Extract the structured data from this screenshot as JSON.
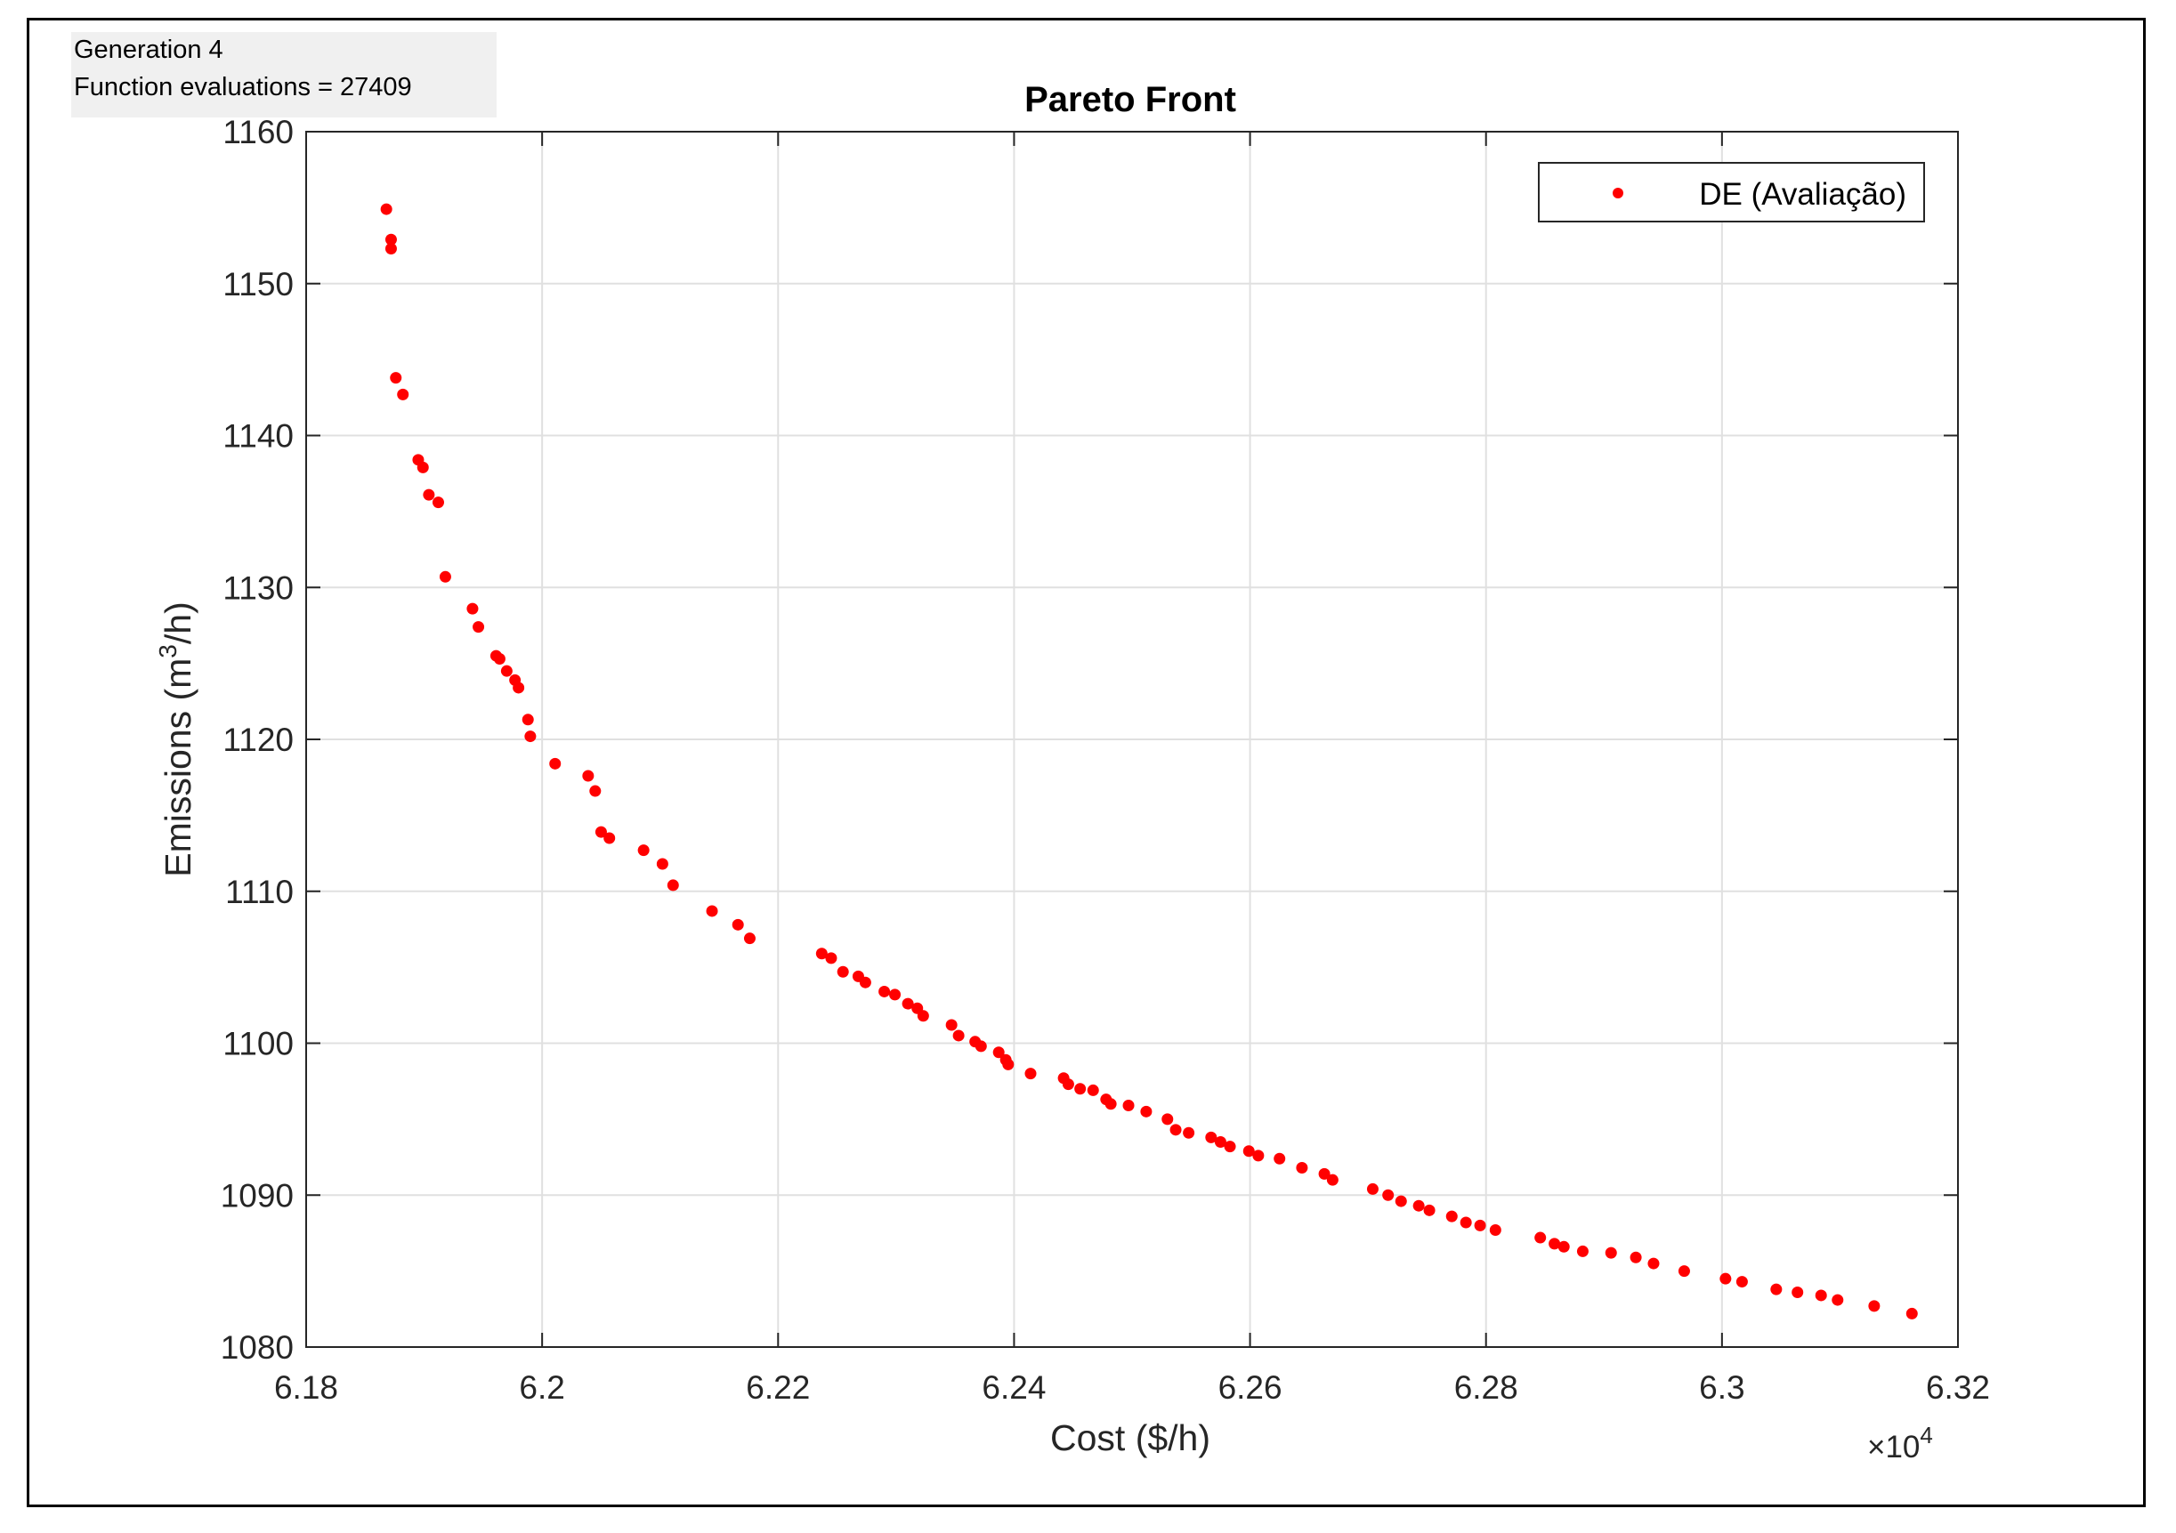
{
  "status": {
    "generation": "Generation 4",
    "function_evaluations": "Function evaluations = 27409"
  },
  "colors": {
    "marker": "#ff0000",
    "grid": "#e0e0e0",
    "axis": "#262626"
  },
  "chart_data": {
    "type": "scatter",
    "title": "Pareto Front",
    "xlabel": "Cost ($/h)",
    "ylabel_main": "Emissions (m",
    "ylabel_sup": "3",
    "ylabel_tail": "/h)",
    "x_multiplier_prefix": "×10",
    "x_multiplier_exp": "4",
    "xlim": [
      6.18,
      6.32
    ],
    "ylim": [
      1080,
      1160
    ],
    "xticks": [
      "6.18",
      "6.2",
      "6.22",
      "6.24",
      "6.26",
      "6.28",
      "6.3",
      "6.32"
    ],
    "yticks": [
      "1080",
      "1090",
      "1100",
      "1110",
      "1120",
      "1130",
      "1140",
      "1150",
      "1160"
    ],
    "grid": true,
    "legend_position": "top-right",
    "series": [
      {
        "name": "DE (Avaliação)",
        "color": "#ff0000",
        "points": [
          [
            6.1868,
            1154.9
          ],
          [
            6.1872,
            1152.9
          ],
          [
            6.1872,
            1152.3
          ],
          [
            6.1876,
            1143.8
          ],
          [
            6.1882,
            1142.7
          ],
          [
            6.1895,
            1138.4
          ],
          [
            6.1899,
            1137.9
          ],
          [
            6.1904,
            1136.1
          ],
          [
            6.1912,
            1135.6
          ],
          [
            6.1918,
            1130.7
          ],
          [
            6.1941,
            1128.6
          ],
          [
            6.1946,
            1127.4
          ],
          [
            6.1961,
            1125.5
          ],
          [
            6.1964,
            1125.3
          ],
          [
            6.197,
            1124.5
          ],
          [
            6.1977,
            1123.9
          ],
          [
            6.198,
            1123.4
          ],
          [
            6.1988,
            1121.3
          ],
          [
            6.199,
            1120.2
          ],
          [
            6.2011,
            1118.4
          ],
          [
            6.2039,
            1117.6
          ],
          [
            6.2045,
            1116.6
          ],
          [
            6.205,
            1113.9
          ],
          [
            6.2057,
            1113.5
          ],
          [
            6.2086,
            1112.7
          ],
          [
            6.2102,
            1111.8
          ],
          [
            6.2111,
            1110.4
          ],
          [
            6.2144,
            1108.7
          ],
          [
            6.2166,
            1107.8
          ],
          [
            6.2176,
            1106.9
          ],
          [
            6.2237,
            1105.9
          ],
          [
            6.2245,
            1105.6
          ],
          [
            6.2255,
            1104.7
          ],
          [
            6.2268,
            1104.4
          ],
          [
            6.2274,
            1104.0
          ],
          [
            6.229,
            1103.4
          ],
          [
            6.2299,
            1103.2
          ],
          [
            6.231,
            1102.6
          ],
          [
            6.2318,
            1102.3
          ],
          [
            6.2323,
            1101.8
          ],
          [
            6.2347,
            1101.2
          ],
          [
            6.2353,
            1100.5
          ],
          [
            6.2367,
            1100.1
          ],
          [
            6.2372,
            1099.8
          ],
          [
            6.2387,
            1099.4
          ],
          [
            6.2393,
            1098.9
          ],
          [
            6.2395,
            1098.6
          ],
          [
            6.2414,
            1098.0
          ],
          [
            6.2442,
            1097.7
          ],
          [
            6.2446,
            1097.3
          ],
          [
            6.2456,
            1097.0
          ],
          [
            6.2467,
            1096.9
          ],
          [
            6.2478,
            1096.3
          ],
          [
            6.2482,
            1096.0
          ],
          [
            6.2497,
            1095.9
          ],
          [
            6.2512,
            1095.5
          ],
          [
            6.253,
            1095.0
          ],
          [
            6.2537,
            1094.3
          ],
          [
            6.2548,
            1094.1
          ],
          [
            6.2567,
            1093.8
          ],
          [
            6.2575,
            1093.5
          ],
          [
            6.2583,
            1093.2
          ],
          [
            6.2599,
            1092.9
          ],
          [
            6.2607,
            1092.6
          ],
          [
            6.2625,
            1092.4
          ],
          [
            6.2644,
            1091.8
          ],
          [
            6.2663,
            1091.4
          ],
          [
            6.267,
            1091.0
          ],
          [
            6.2704,
            1090.4
          ],
          [
            6.2717,
            1090.0
          ],
          [
            6.2728,
            1089.6
          ],
          [
            6.2743,
            1089.3
          ],
          [
            6.2752,
            1089.0
          ],
          [
            6.2771,
            1088.6
          ],
          [
            6.2783,
            1088.2
          ],
          [
            6.2795,
            1088.0
          ],
          [
            6.2808,
            1087.7
          ],
          [
            6.2846,
            1087.2
          ],
          [
            6.2858,
            1086.8
          ],
          [
            6.2866,
            1086.6
          ],
          [
            6.2882,
            1086.3
          ],
          [
            6.2906,
            1086.2
          ],
          [
            6.2927,
            1085.9
          ],
          [
            6.2942,
            1085.5
          ],
          [
            6.2968,
            1085.0
          ],
          [
            6.3003,
            1084.5
          ],
          [
            6.3017,
            1084.3
          ],
          [
            6.3046,
            1083.8
          ],
          [
            6.3064,
            1083.6
          ],
          [
            6.3084,
            1083.4
          ],
          [
            6.3098,
            1083.1
          ],
          [
            6.3129,
            1082.7
          ],
          [
            6.3161,
            1082.2
          ]
        ]
      }
    ]
  }
}
